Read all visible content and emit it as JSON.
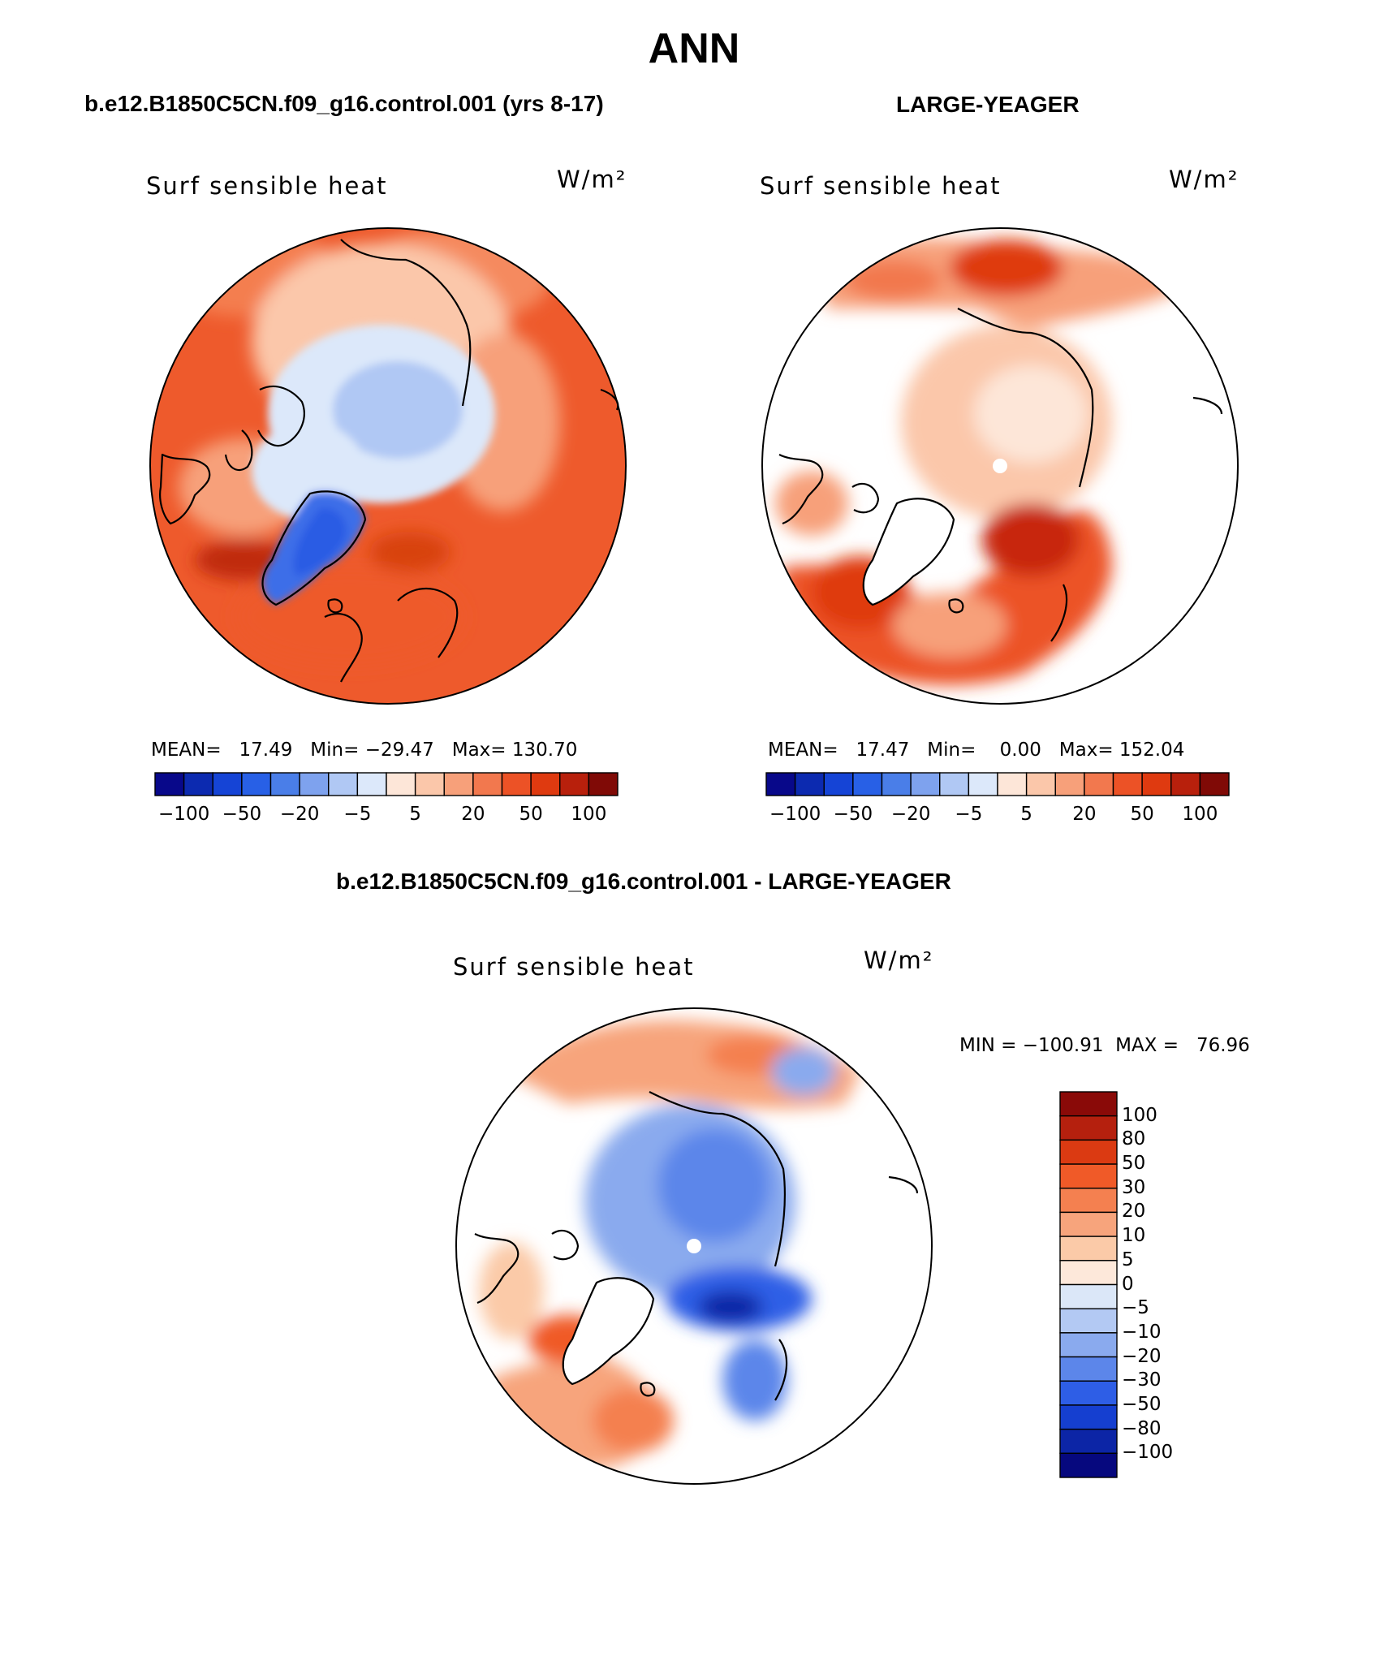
{
  "page": {
    "title": "ANN",
    "left_title": "b.e12.B1850C5CN.f09_g16.control.001 (yrs 8-17)",
    "right_title": "LARGE-YEAGER",
    "diff_title": "b.e12.B1850C5CN.f09_g16.control.001 - LARGE-YEAGER"
  },
  "panels": [
    {
      "label": "Surf sensible heat",
      "units": "W/m²",
      "stats": "MEAN=   17.49   Min= −29.47   Max= 130.70",
      "colorbar_ticks": [
        "−100",
        "−50",
        "−20",
        "−5",
        "5",
        "20",
        "50",
        "100"
      ]
    },
    {
      "label": "Surf sensible heat",
      "units": "W/m²",
      "stats": "MEAN=   17.47   Min=    0.00   Max= 152.04",
      "colorbar_ticks": [
        "−100",
        "−50",
        "−20",
        "−5",
        "5",
        "20",
        "50",
        "100"
      ]
    },
    {
      "label": "Surf sensible heat",
      "units": "W/m²",
      "stats": "MIN = −100.91  MAX =   76.96",
      "colorbar_ticks": [
        "100",
        "80",
        "50",
        "30",
        "20",
        "10",
        "5",
        "0",
        "−5",
        "−10",
        "−20",
        "−30",
        "−50",
        "−80",
        "−100"
      ]
    }
  ],
  "colors": {
    "top_scale": [
      "#08088a",
      "#0c2ab0",
      "#1544d6",
      "#2860e6",
      "#4a7ee8",
      "#7ea2ee",
      "#b0c8f4",
      "#dce8fa",
      "#fde6d8",
      "#fbc7aa",
      "#f7a07a",
      "#f2784e",
      "#ec5226",
      "#df3a10",
      "#b8200c",
      "#800a06"
    ],
    "diff_scale": [
      "#8a0a08",
      "#b5200e",
      "#db3a12",
      "#f05a28",
      "#f48050",
      "#f7a47c",
      "#fbcaa8",
      "#fde8da",
      "#dbe7f8",
      "#b3c9f3",
      "#8aaaee",
      "#5c86ea",
      "#2e5ee6",
      "#153fd0",
      "#0c25a6",
      "#06087e"
    ],
    "land_mask": "#ffffff",
    "coast": "#000000"
  }
}
